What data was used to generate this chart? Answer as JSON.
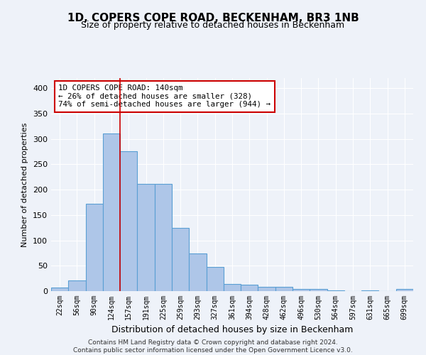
{
  "title": "1D, COPERS COPE ROAD, BECKENHAM, BR3 1NB",
  "subtitle": "Size of property relative to detached houses in Beckenham",
  "xlabel": "Distribution of detached houses by size in Beckenham",
  "ylabel": "Number of detached properties",
  "categories": [
    "22sqm",
    "56sqm",
    "90sqm",
    "124sqm",
    "157sqm",
    "191sqm",
    "225sqm",
    "259sqm",
    "293sqm",
    "327sqm",
    "361sqm",
    "394sqm",
    "428sqm",
    "462sqm",
    "496sqm",
    "530sqm",
    "564sqm",
    "597sqm",
    "631sqm",
    "665sqm",
    "699sqm"
  ],
  "values": [
    7,
    21,
    172,
    311,
    276,
    211,
    211,
    125,
    74,
    48,
    14,
    12,
    9,
    9,
    4,
    4,
    2,
    0,
    1,
    0,
    4
  ],
  "bar_color": "#aec6e8",
  "bar_edge_color": "#5a9fd4",
  "property_line_x": 3.5,
  "annotation_text": "1D COPERS COPE ROAD: 140sqm\n← 26% of detached houses are smaller (328)\n74% of semi-detached houses are larger (944) →",
  "annotation_box_color": "#ffffff",
  "annotation_box_edge": "#cc0000",
  "vline_color": "#cc0000",
  "ylim": [
    0,
    420
  ],
  "yticks": [
    0,
    50,
    100,
    150,
    200,
    250,
    300,
    350,
    400
  ],
  "background_color": "#eef2f9",
  "grid_color": "#ffffff",
  "footer_line1": "Contains HM Land Registry data © Crown copyright and database right 2024.",
  "footer_line2": "Contains public sector information licensed under the Open Government Licence v3.0."
}
